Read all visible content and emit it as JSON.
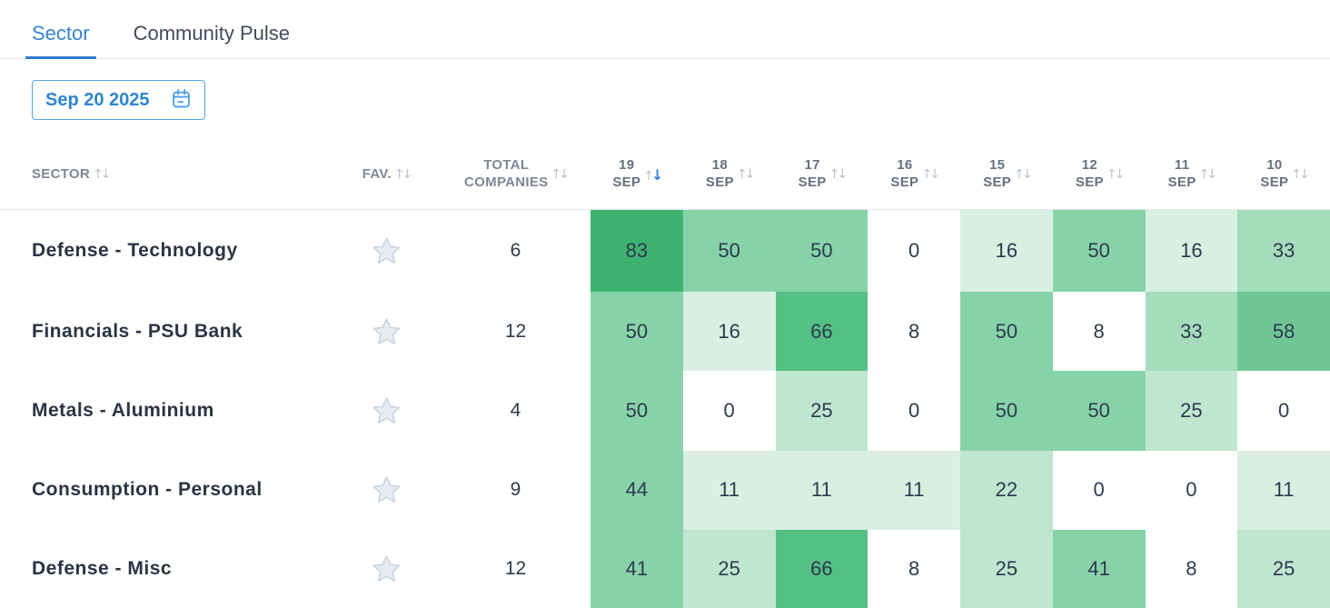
{
  "tabs": [
    {
      "label": "Sector",
      "active": true
    },
    {
      "label": "Community Pulse",
      "active": false
    }
  ],
  "date_picker": {
    "value": "Sep 20 2025"
  },
  "table": {
    "headers": {
      "sector": "SECTOR",
      "fav": "FAV.",
      "total_line1": "TOTAL",
      "total_line2": "COMPANIES"
    },
    "date_columns": [
      {
        "day": "19",
        "month": "SEP",
        "sorted": "desc"
      },
      {
        "day": "18",
        "month": "SEP",
        "sorted": null
      },
      {
        "day": "17",
        "month": "SEP",
        "sorted": null
      },
      {
        "day": "16",
        "month": "SEP",
        "sorted": null
      },
      {
        "day": "15",
        "month": "SEP",
        "sorted": null
      },
      {
        "day": "12",
        "month": "SEP",
        "sorted": null
      },
      {
        "day": "11",
        "month": "SEP",
        "sorted": null
      },
      {
        "day": "10",
        "month": "SEP",
        "sorted": null
      }
    ],
    "rows": [
      {
        "sector": "Defense - Technology",
        "total": "6",
        "values": [
          83,
          50,
          50,
          0,
          16,
          50,
          16,
          33
        ]
      },
      {
        "sector": "Financials - PSU Bank",
        "total": "12",
        "values": [
          50,
          16,
          66,
          8,
          50,
          8,
          33,
          58
        ]
      },
      {
        "sector": "Metals - Aluminium",
        "total": "4",
        "values": [
          50,
          0,
          25,
          0,
          50,
          50,
          25,
          0
        ]
      },
      {
        "sector": "Consumption - Personal",
        "total": "9",
        "values": [
          44,
          11,
          11,
          11,
          22,
          0,
          0,
          11
        ]
      },
      {
        "sector": "Defense - Misc",
        "total": "12",
        "values": [
          41,
          25,
          66,
          8,
          25,
          41,
          8,
          25
        ]
      }
    ],
    "heatmap_palette": [
      "#ffffff",
      "#d9efe2",
      "#bfe6ce",
      "#a5dcbb",
      "#87d3a8",
      "#6ec794",
      "#55c084",
      "#47ba7a",
      "#3eb370",
      "#2aa862"
    ]
  },
  "colors": {
    "active_tab": "#3584cf",
    "accent_blue": "#2c7ccd",
    "date_button_border": "#54a3e8",
    "header_text": "#7d8795",
    "sort_arrow": "#b9c3cf",
    "active_sort_arrow": "#2f7fd6"
  }
}
